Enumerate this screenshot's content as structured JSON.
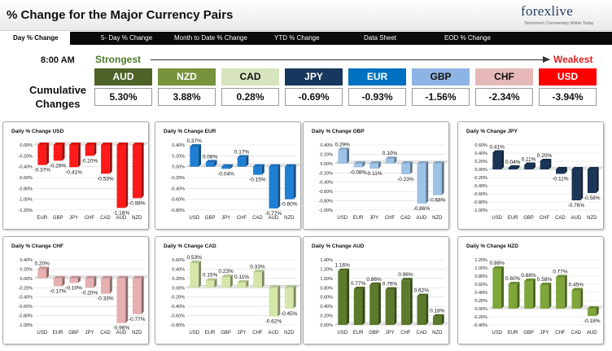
{
  "header": {
    "title": "% Change for the Major Currency Pairs",
    "logo_text": "forexlive",
    "logo_tagline": "Tomorrow's Commentary Within Today"
  },
  "nav": {
    "tabs": [
      {
        "label": "Day % Change",
        "active": true
      },
      {
        "label": "5- Day % Change",
        "active": false
      },
      {
        "label": "Month to Date % Change",
        "active": false
      },
      {
        "label": "YTD % Change",
        "active": false
      },
      {
        "label": "Data Sheet",
        "active": false
      },
      {
        "label": "EOD % Change",
        "active": false
      }
    ]
  },
  "summary": {
    "time": "8:00 AM",
    "strongest_label": "Strongest",
    "weakest_label": "Weakest",
    "cumulative_label_line1": "Cumulative",
    "cumulative_label_line2": "Changes",
    "currencies": [
      {
        "code": "AUD",
        "value": "5.30%",
        "bg": "#4f6228",
        "fg": "#ffffff"
      },
      {
        "code": "NZD",
        "value": "3.88%",
        "bg": "#77933c",
        "fg": "#ffffff"
      },
      {
        "code": "CAD",
        "value": "0.28%",
        "bg": "#d7e4bd",
        "fg": "#111111"
      },
      {
        "code": "JPY",
        "value": "-0.69%",
        "bg": "#17375e",
        "fg": "#ffffff"
      },
      {
        "code": "EUR",
        "value": "-0.93%",
        "bg": "#0070c0",
        "fg": "#ffffff"
      },
      {
        "code": "GBP",
        "value": "-1.56%",
        "bg": "#8eb4e3",
        "fg": "#111111"
      },
      {
        "code": "CHF",
        "value": "-2.34%",
        "bg": "#e6b9b8",
        "fg": "#111111"
      },
      {
        "code": "USD",
        "value": "-3.94%",
        "bg": "#ff0000",
        "fg": "#ffffff"
      }
    ]
  },
  "chart_data": [
    {
      "type": "bar",
      "title": "Daily % Change USD",
      "color": "#ff1a1a",
      "categories": [
        "EUR",
        "GBP",
        "JPY",
        "CHF",
        "CAD",
        "AUD",
        "NZD"
      ],
      "values": [
        -0.37,
        -0.29,
        -0.41,
        -0.2,
        -0.53,
        -1.16,
        -0.98
      ],
      "labels": [
        "-0.37%",
        "-0.29%",
        "-0.41%",
        "-0.20%",
        "-0.53%",
        "-1.16%",
        "-0.98%"
      ],
      "yticks": [
        "0.00%",
        "-0.20%",
        "-0.40%",
        "-0.60%",
        "-0.80%",
        "-1.00%",
        "-1.20%"
      ],
      "ylim": [
        -1.2,
        0
      ]
    },
    {
      "type": "bar",
      "title": "Daily % Change EUR",
      "color": "#1f7fd4",
      "categories": [
        "USD",
        "GBP",
        "JPY",
        "CHF",
        "CAD",
        "AUD",
        "NZD"
      ],
      "values": [
        0.37,
        0.08,
        -0.04,
        0.17,
        -0.15,
        -0.77,
        -0.6
      ],
      "labels": [
        "0.37%",
        "0.08%",
        "-0.04%",
        "0.17%",
        "-0.15%",
        "-0.77%",
        "-0.60%"
      ],
      "yticks": [
        "0.40%",
        "0.20%",
        "0.00%",
        "-0.20%",
        "-0.40%",
        "-0.60%",
        "-0.80%"
      ],
      "ylim": [
        -0.8,
        0.4
      ]
    },
    {
      "type": "bar",
      "title": "Daily % Change GBP",
      "color": "#9dc3e6",
      "categories": [
        "USD",
        "EUR",
        "JPY",
        "CHF",
        "CAD",
        "AUD",
        "NZD"
      ],
      "values": [
        0.29,
        -0.08,
        -0.11,
        0.1,
        -0.23,
        -0.86,
        -0.68
      ],
      "labels": [
        "0.29%",
        "-0.08%",
        "-0.11%",
        "0.10%",
        "-0.23%",
        "-0.86%",
        "-0.68%"
      ],
      "yticks": [
        "0.40%",
        "0.20%",
        "0.00%",
        "-0.20%",
        "-0.40%",
        "-0.60%",
        "-0.80%",
        "-1.00%"
      ],
      "ylim": [
        -1.0,
        0.4
      ]
    },
    {
      "type": "bar",
      "title": "Daily % Change JPY",
      "color": "#1a3558",
      "categories": [
        "USD",
        "EUR",
        "GBP",
        "CHF",
        "CAD",
        "AUD",
        "NZD"
      ],
      "values": [
        0.41,
        0.04,
        0.11,
        0.2,
        -0.11,
        -0.76,
        -0.58
      ],
      "labels": [
        "0.41%",
        "0.04%",
        "0.11%",
        "0.20%",
        "-0.11%",
        "-0.76%",
        "-0.58%"
      ],
      "yticks": [
        "0.60%",
        "0.40%",
        "0.20%",
        "0.00%",
        "-0.20%",
        "-0.40%",
        "-0.60%",
        "-0.80%",
        "-1.00%"
      ],
      "ylim": [
        -1.0,
        0.6
      ]
    },
    {
      "type": "bar",
      "title": "Daily % Change CHF",
      "color": "#e6b0b0",
      "categories": [
        "USD",
        "EUR",
        "GBP",
        "JPY",
        "CAD",
        "AUD",
        "NZD"
      ],
      "values": [
        0.2,
        -0.17,
        -0.1,
        -0.2,
        -0.33,
        -0.96,
        -0.77
      ],
      "labels": [
        "0.20%",
        "-0.17%",
        "-0.10%",
        "-0.20%",
        "-0.33%",
        "-0.96%",
        "-0.77%"
      ],
      "yticks": [
        "0.40%",
        "0.20%",
        "0.00%",
        "-0.20%",
        "-0.40%",
        "-0.60%",
        "-0.80%",
        "-1.00%"
      ],
      "ylim": [
        -1.0,
        0.4
      ]
    },
    {
      "type": "bar",
      "title": "Daily % Change CAD",
      "color": "#d4e6a8",
      "categories": [
        "USD",
        "EUR",
        "GBP",
        "JPY",
        "CHF",
        "AUD",
        "NZD"
      ],
      "values": [
        0.53,
        0.15,
        0.23,
        0.11,
        0.33,
        -0.62,
        -0.45
      ],
      "labels": [
        "0.53%",
        "0.15%",
        "0.23%",
        "0.11%",
        "0.33%",
        "-0.62%",
        "-0.45%"
      ],
      "yticks": [
        "0.60%",
        "0.40%",
        "0.20%",
        "0.00%",
        "-0.20%",
        "-0.40%",
        "-0.60%",
        "-0.80%"
      ],
      "ylim": [
        -0.8,
        0.6
      ]
    },
    {
      "type": "bar",
      "title": "Daily % Change AUD",
      "color": "#5b7a2a",
      "categories": [
        "USD",
        "EUR",
        "GBP",
        "JPY",
        "CHF",
        "CAD",
        "NZD"
      ],
      "values": [
        1.16,
        0.77,
        0.86,
        0.76,
        0.96,
        0.62,
        0.18
      ],
      "labels": [
        "1.16%",
        "0.77%",
        "0.86%",
        "0.76%",
        "0.96%",
        "0.62%",
        "0.18%"
      ],
      "yticks": [
        "1.40%",
        "1.20%",
        "1.00%",
        "0.80%",
        "0.60%",
        "0.40%",
        "0.20%",
        "0.00%"
      ],
      "ylim": [
        0,
        1.4
      ]
    },
    {
      "type": "bar",
      "title": "Daily % Change NZD",
      "color": "#7ea63a",
      "categories": [
        "USD",
        "EUR",
        "GBP",
        "JPY",
        "CHF",
        "CAD",
        "AUD"
      ],
      "values": [
        0.98,
        0.6,
        0.68,
        0.58,
        0.77,
        0.45,
        -0.18
      ],
      "labels": [
        "0.98%",
        "0.60%",
        "0.68%",
        "0.58%",
        "0.77%",
        "0.45%",
        "-0.18%"
      ],
      "yticks": [
        "1.20%",
        "1.00%",
        "0.80%",
        "0.60%",
        "0.40%",
        "0.20%",
        "0.00%",
        "-0.20%",
        "-0.40%"
      ],
      "ylim": [
        -0.4,
        1.2
      ]
    }
  ]
}
